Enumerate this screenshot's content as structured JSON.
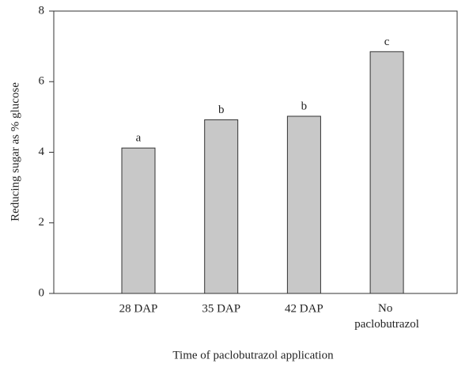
{
  "chart_data": {
    "type": "bar",
    "categories": [
      "28 DAP",
      "35 DAP",
      "42 DAP",
      "No paclobutrazol"
    ],
    "values": [
      4.12,
      4.92,
      5.02,
      6.85
    ],
    "annotations": [
      "a",
      "b",
      "b",
      "c"
    ],
    "color": "#c8c8c8",
    "xlabel": "Time of paclobutrazol application",
    "ylabel": "Reducing sugar as % glucose",
    "ylim": [
      0,
      8
    ],
    "yticks": [
      0,
      2,
      4,
      6,
      8
    ],
    "grid": false
  }
}
